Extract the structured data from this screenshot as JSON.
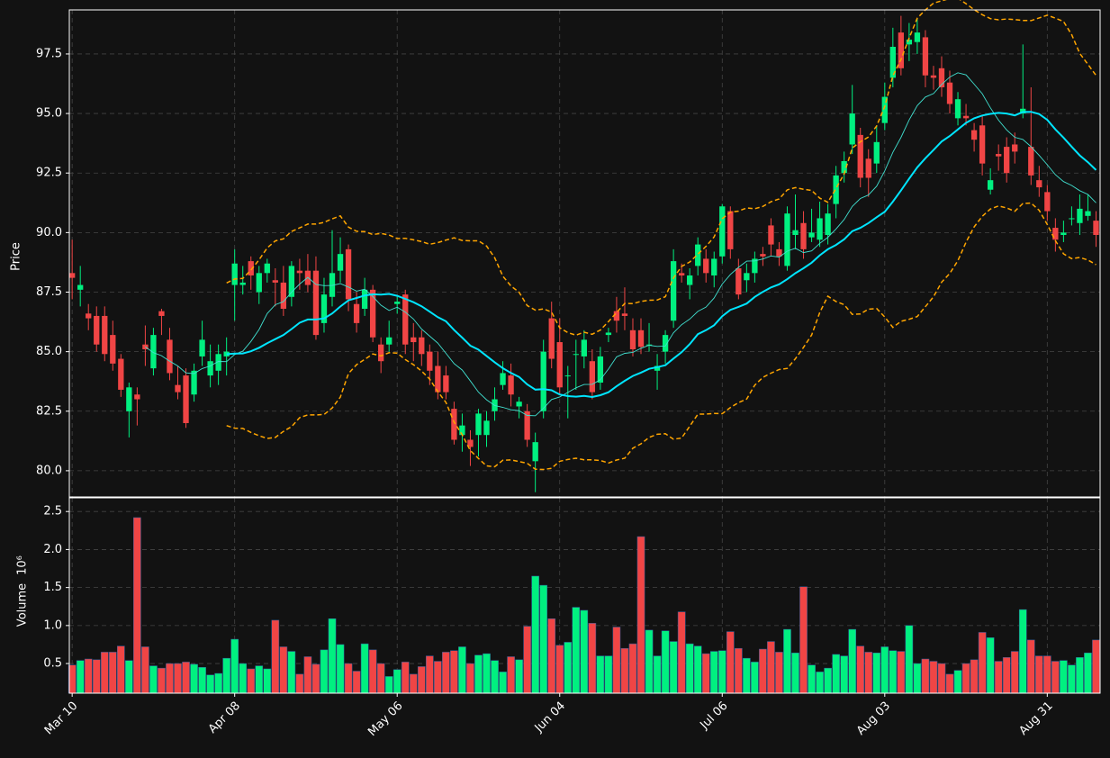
{
  "chart_data": {
    "type": "candlestick",
    "ylabel": "Price",
    "grid": true,
    "up_color": "#00f080",
    "down_color": "#f04545",
    "xlim": [
      -0.35,
      126.5
    ],
    "xticks": [
      {
        "value": 0,
        "label": "Mar 10"
      },
      {
        "value": 20,
        "label": "Apr 08"
      },
      {
        "value": 40,
        "label": "May 06"
      },
      {
        "value": 60,
        "label": "Jun 04"
      },
      {
        "value": 80,
        "label": "Jul 06"
      },
      {
        "value": 100,
        "label": "Aug 03"
      },
      {
        "value": 120,
        "label": "Aug 31"
      }
    ],
    "ylim": [
      78.9,
      99.35
    ],
    "yticks": [
      {
        "value": 80,
        "label": "80.0"
      },
      82.5,
      {
        "value": 85,
        "label": "85.0"
      },
      87.5,
      {
        "value": 90,
        "label": "90.0"
      },
      92.5,
      {
        "value": 95,
        "label": "95.0"
      },
      97.5
    ],
    "open": [
      88.3,
      87.6,
      86.6,
      86.5,
      86.5,
      85.7,
      84.7,
      82.5,
      83.2,
      85.3,
      84.3,
      86.7,
      85.5,
      83.6,
      84.0,
      83.2,
      84.8,
      84.0,
      84.2,
      84.8,
      87.8,
      87.8,
      88.8,
      87.5,
      88.3,
      88.0,
      87.9,
      87.3,
      88.4,
      88.4,
      88.4,
      86.2,
      87.3,
      88.4,
      89.3,
      87.0,
      86.8,
      87.6,
      85.3,
      85.3,
      87.0,
      87.4,
      85.6,
      85.6,
      85.0,
      84.4,
      84.0,
      82.6,
      81.5,
      81.3,
      81.5,
      81.5,
      82.5,
      83.6,
      84.0,
      82.7,
      82.5,
      80.4,
      82.5,
      86.4,
      85.4,
      84.0,
      84.9,
      84.8,
      84.6,
      83.7,
      85.7,
      86.7,
      86.6,
      85.9,
      85.9,
      85.3,
      84.2,
      85.0,
      86.3,
      88.3,
      87.8,
      88.6,
      88.9,
      88.2,
      89.0,
      90.9,
      88.5,
      88.0,
      88.3,
      89.1,
      90.3,
      89.3,
      88.6,
      89.9,
      90.4,
      89.8,
      89.7,
      89.9,
      91.2,
      92.5,
      93.7,
      94.1,
      93.1,
      92.9,
      94.6,
      96.5,
      98.4,
      97.9,
      98.0,
      98.2,
      96.6,
      96.9,
      96.3,
      94.8,
      94.9,
      94.3,
      94.5,
      91.8,
      93.3,
      93.6,
      93.7,
      95.0,
      93.6,
      92.2,
      91.7,
      90.2,
      89.9,
      90.6,
      90.4,
      90.7,
      90.5
    ],
    "high": [
      89.7,
      88.6,
      87.0,
      86.9,
      86.9,
      86.3,
      84.9,
      83.7,
      83.5,
      86.1,
      86.0,
      86.8,
      86.0,
      84.4,
      84.3,
      84.5,
      86.3,
      85.3,
      85.3,
      85.6,
      89.3,
      88.6,
      89.0,
      88.6,
      88.9,
      88.5,
      88.6,
      88.8,
      88.9,
      89.1,
      89.0,
      88.1,
      90.1,
      89.8,
      89.5,
      87.5,
      88.1,
      87.8,
      85.6,
      86.3,
      87.3,
      87.6,
      86.2,
      85.9,
      85.3,
      85.0,
      84.4,
      82.9,
      82.4,
      81.7,
      82.6,
      82.5,
      83.5,
      84.6,
      84.5,
      83.1,
      82.8,
      81.6,
      85.5,
      87.1,
      86.4,
      84.4,
      85.5,
      85.9,
      85.1,
      85.2,
      86.0,
      87.3,
      87.7,
      86.4,
      86.4,
      86.2,
      84.9,
      85.9,
      89.3,
      88.7,
      88.5,
      89.8,
      89.3,
      89.2,
      91.2,
      91.1,
      88.9,
      88.7,
      89.2,
      89.4,
      90.6,
      89.6,
      91.1,
      91.6,
      90.9,
      91.0,
      91.3,
      91.2,
      92.8,
      93.4,
      96.2,
      94.4,
      93.5,
      94.5,
      96.3,
      98.6,
      99.1,
      98.8,
      99.0,
      98.5,
      97.0,
      97.4,
      96.8,
      95.9,
      95.4,
      94.6,
      94.9,
      92.7,
      93.7,
      94.0,
      94.2,
      97.9,
      96.1,
      92.8,
      92.0,
      90.6,
      90.5,
      91.1,
      91.6,
      91.6,
      90.9
    ],
    "low": [
      87.2,
      86.9,
      85.9,
      85.0,
      84.6,
      84.2,
      83.1,
      81.4,
      81.9,
      84.4,
      84.0,
      85.7,
      83.8,
      83.0,
      81.8,
      82.9,
      84.4,
      83.5,
      83.6,
      84.0,
      86.3,
      87.4,
      87.6,
      87.0,
      87.9,
      86.9,
      86.5,
      86.9,
      87.6,
      87.5,
      85.5,
      85.8,
      86.9,
      87.9,
      86.7,
      85.8,
      86.5,
      85.4,
      84.1,
      85.0,
      86.6,
      84.9,
      84.6,
      84.4,
      83.6,
      83.0,
      83.0,
      81.1,
      80.8,
      80.2,
      80.6,
      81.0,
      82.1,
      83.4,
      82.7,
      82.2,
      81.0,
      79.1,
      82.2,
      84.3,
      83.2,
      82.2,
      83.4,
      84.3,
      83.0,
      83.4,
      85.4,
      85.8,
      85.9,
      84.8,
      84.9,
      85.0,
      83.4,
      84.5,
      86.0,
      87.9,
      87.2,
      88.2,
      87.9,
      87.7,
      88.7,
      88.9,
      87.2,
      87.5,
      87.9,
      88.6,
      89.0,
      88.6,
      88.4,
      89.3,
      88.9,
      89.6,
      89.4,
      89.5,
      90.6,
      92.1,
      93.3,
      91.9,
      91.5,
      92.5,
      94.3,
      96.1,
      96.6,
      97.2,
      97.5,
      96.1,
      96.0,
      95.7,
      95.0,
      94.5,
      94.5,
      93.4,
      92.4,
      91.6,
      92.6,
      92.1,
      92.9,
      94.8,
      92.0,
      91.5,
      90.5,
      89.2,
      89.6,
      90.3,
      89.9,
      90.5,
      89.4
    ],
    "close": [
      88.1,
      87.8,
      86.4,
      85.3,
      84.9,
      84.5,
      83.4,
      83.5,
      83.0,
      85.1,
      85.7,
      86.5,
      84.1,
      83.3,
      82.0,
      84.2,
      85.5,
      84.6,
      84.9,
      85.0,
      88.7,
      87.9,
      88.2,
      88.3,
      88.7,
      87.9,
      86.8,
      88.6,
      88.3,
      87.8,
      85.7,
      87.4,
      88.3,
      89.1,
      87.2,
      86.2,
      87.6,
      85.6,
      84.6,
      85.6,
      87.1,
      85.3,
      85.4,
      84.9,
      84.2,
      83.3,
      83.3,
      81.3,
      81.9,
      81.0,
      82.4,
      82.1,
      83.0,
      84.1,
      83.2,
      82.9,
      81.3,
      81.2,
      85.0,
      84.7,
      83.5,
      84.0,
      84.9,
      85.5,
      83.3,
      84.8,
      85.8,
      86.3,
      86.5,
      85.1,
      85.2,
      85.3,
      84.4,
      85.7,
      88.8,
      88.2,
      88.2,
      89.5,
      88.3,
      88.9,
      91.1,
      89.3,
      87.4,
      88.3,
      88.9,
      89.0,
      89.5,
      89.0,
      90.8,
      90.1,
      89.3,
      90.0,
      90.6,
      90.8,
      92.4,
      93.0,
      95.0,
      92.3,
      92.3,
      93.8,
      95.7,
      97.8,
      96.9,
      98.1,
      98.4,
      96.6,
      96.5,
      96.1,
      95.4,
      95.6,
      94.8,
      93.9,
      92.9,
      92.2,
      93.2,
      92.5,
      93.4,
      95.2,
      92.4,
      91.9,
      90.9,
      89.7,
      90.0,
      90.6,
      91.0,
      90.9,
      89.9
    ],
    "mav": [
      10,
      20
    ],
    "mav_colors": [
      "#40e0d0",
      "#00e5ff"
    ],
    "bollinger": {
      "window": 20,
      "std": 2,
      "color": "#ffa500"
    },
    "volume": {
      "label": "Volume",
      "unit": "10⁶",
      "ylim": [
        0.11,
        2.68
      ],
      "yticks": [
        0.5,
        {
          "value": 1,
          "label": "1.0"
        },
        1.5,
        {
          "value": 2,
          "label": "2.0"
        },
        2.5
      ],
      "values": [
        0.48,
        0.54,
        0.56,
        0.55,
        0.65,
        0.65,
        0.73,
        0.54,
        2.42,
        0.72,
        0.47,
        0.44,
        0.5,
        0.5,
        0.52,
        0.49,
        0.45,
        0.35,
        0.37,
        0.57,
        0.82,
        0.5,
        0.43,
        0.47,
        0.43,
        1.07,
        0.72,
        0.66,
        0.36,
        0.59,
        0.49,
        0.68,
        1.09,
        0.75,
        0.5,
        0.4,
        0.76,
        0.68,
        0.5,
        0.33,
        0.42,
        0.52,
        0.36,
        0.46,
        0.6,
        0.53,
        0.65,
        0.67,
        0.72,
        0.5,
        0.61,
        0.63,
        0.54,
        0.39,
        0.59,
        0.55,
        0.99,
        1.65,
        1.53,
        1.09,
        0.74,
        0.78,
        1.24,
        1.2,
        1.03,
        0.6,
        0.6,
        0.98,
        0.7,
        0.76,
        2.17,
        0.94,
        0.6,
        0.93,
        0.79,
        1.18,
        0.76,
        0.73,
        0.63,
        0.66,
        0.67,
        0.92,
        0.7,
        0.57,
        0.52,
        0.69,
        0.79,
        0.65,
        0.95,
        0.64,
        1.51,
        0.48,
        0.39,
        0.44,
        0.62,
        0.6,
        0.95,
        0.73,
        0.65,
        0.64,
        0.72,
        0.67,
        0.66,
        1.0,
        0.5,
        0.56,
        0.53,
        0.5,
        0.36,
        0.41,
        0.5,
        0.55,
        0.91,
        0.84,
        0.53,
        0.58,
        0.66,
        1.21,
        0.81,
        0.6,
        0.6,
        0.53,
        0.54,
        0.48,
        0.58,
        0.64,
        0.81
      ]
    }
  }
}
